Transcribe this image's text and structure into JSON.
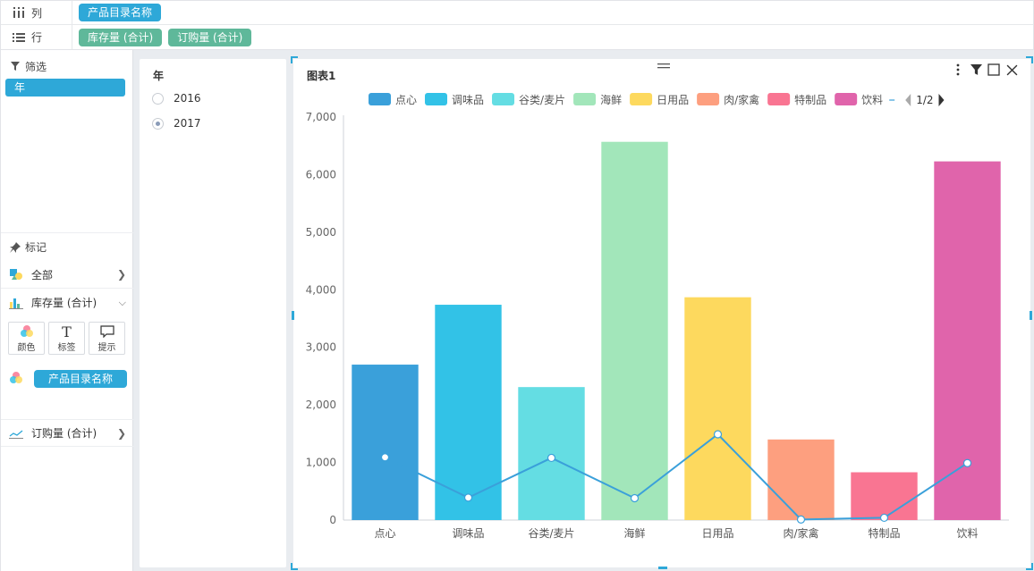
{
  "shelves": {
    "columns_label": "列",
    "rows_label": "行",
    "column_fields": [
      "产品目录名称"
    ],
    "row_fields": [
      "库存量 (合计)",
      "订购量 (合计)"
    ]
  },
  "left_panel": {
    "filter_title": "筛选",
    "filter_field": "年",
    "mark_title": "标记",
    "mark_all": "全部",
    "mark_measure1": "库存量 (合计)",
    "mark_buttons": {
      "color": "颜色",
      "label": "标签",
      "tooltip": "提示"
    },
    "color_field": "产品目录名称",
    "mark_measure2": "订购量 (合计)"
  },
  "year_filter": {
    "title": "年",
    "options": [
      {
        "label": "2016",
        "selected": false
      },
      {
        "label": "2017",
        "selected": true
      }
    ]
  },
  "chart_panel": {
    "title": "图表1",
    "legend_page": "1/2"
  },
  "chart_data": {
    "type": "bar",
    "categories": [
      "点心",
      "调味品",
      "谷类/麦片",
      "海鲜",
      "日用品",
      "肉/家禽",
      "特制品",
      "饮料"
    ],
    "series": [
      {
        "name": "库存量 (合计)",
        "type": "bar",
        "values": [
          2700,
          3740,
          2310,
          6570,
          3870,
          1400,
          830,
          6230
        ]
      },
      {
        "name": "订购量 (合计)",
        "type": "line",
        "values": [
          1090,
          390,
          1080,
          380,
          1490,
          10,
          40,
          990
        ]
      }
    ],
    "bar_colors": [
      "#3aa0da",
      "#32c2e7",
      "#64dde3",
      "#a2e6ba",
      "#fdd95e",
      "#fd9f7f",
      "#f97592",
      "#e064ab"
    ],
    "line_color": "#3aa0da",
    "legend_colors": [
      "#3aa0da",
      "#32c2e7",
      "#64dde3",
      "#a2e6ba",
      "#fdd95e",
      "#fd9f7f",
      "#f97592",
      "#e064ab"
    ],
    "y_ticks": [
      "0",
      "1,000",
      "2,000",
      "3,000",
      "4,000",
      "5,000",
      "6,000",
      "7,000"
    ],
    "ylim": [
      0,
      7000
    ],
    "grid": false,
    "legend_position": "top"
  }
}
